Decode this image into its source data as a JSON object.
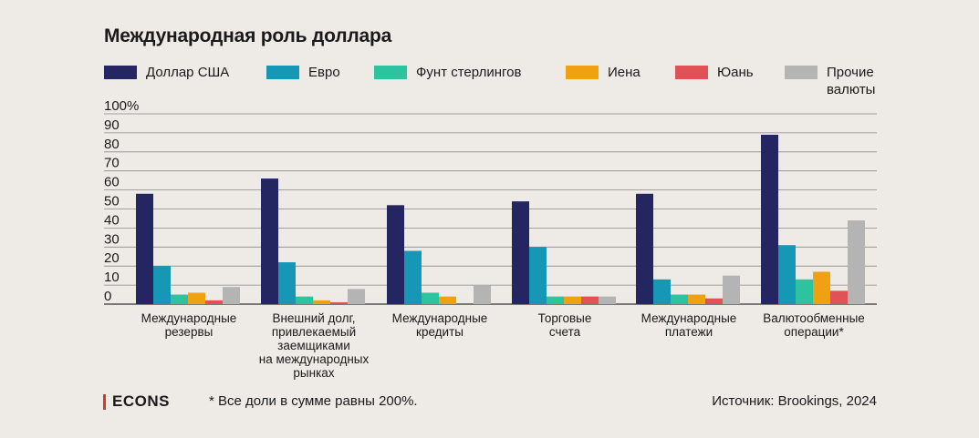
{
  "title": "Международная роль доллара",
  "footnote": "* Все доли в сумме равны 200%.",
  "source": "Источник: Brookings, 2024",
  "logo": "ECONS",
  "colors": {
    "usd": "#232660",
    "eur": "#1797b6",
    "gbp": "#2cc39e",
    "jpy": "#f0a013",
    "cny": "#e05256",
    "other": "#b4b4b4"
  },
  "chart_data": {
    "type": "bar",
    "ylim": [
      0,
      100
    ],
    "yticks": [
      "0",
      "10",
      "20",
      "30",
      "40",
      "50",
      "60",
      "70",
      "80",
      "90",
      "100%"
    ],
    "grid": true,
    "legend_position": "top",
    "categories": [
      "Международные\nрезервы",
      "Внешний долг,\nпривлекаемый\nзаемщиками\nна международных\nрынках",
      "Международные\nкредиты",
      "Торговые\nсчета",
      "Международные\nплатежи",
      "Валютообменные\nоперации*"
    ],
    "series": [
      {
        "name": "Доллар США",
        "color": "#232660",
        "values": [
          58,
          66,
          52,
          54,
          58,
          89
        ]
      },
      {
        "name": "Евро",
        "color": "#1797b6",
        "values": [
          20,
          22,
          28,
          30,
          13,
          31
        ]
      },
      {
        "name": "Фунт стерлингов",
        "color": "#2cc39e",
        "values": [
          5,
          4,
          6,
          4,
          5,
          13
        ]
      },
      {
        "name": "Иена",
        "color": "#f0a013",
        "values": [
          6,
          2,
          4,
          4,
          5,
          17
        ]
      },
      {
        "name": "Юань",
        "color": "#e05256",
        "values": [
          2,
          1,
          0,
          4,
          3,
          7
        ]
      },
      {
        "name": "Прочие\nвалюты",
        "color": "#b4b4b4",
        "values": [
          9,
          8,
          10,
          4,
          15,
          44
        ]
      }
    ]
  }
}
